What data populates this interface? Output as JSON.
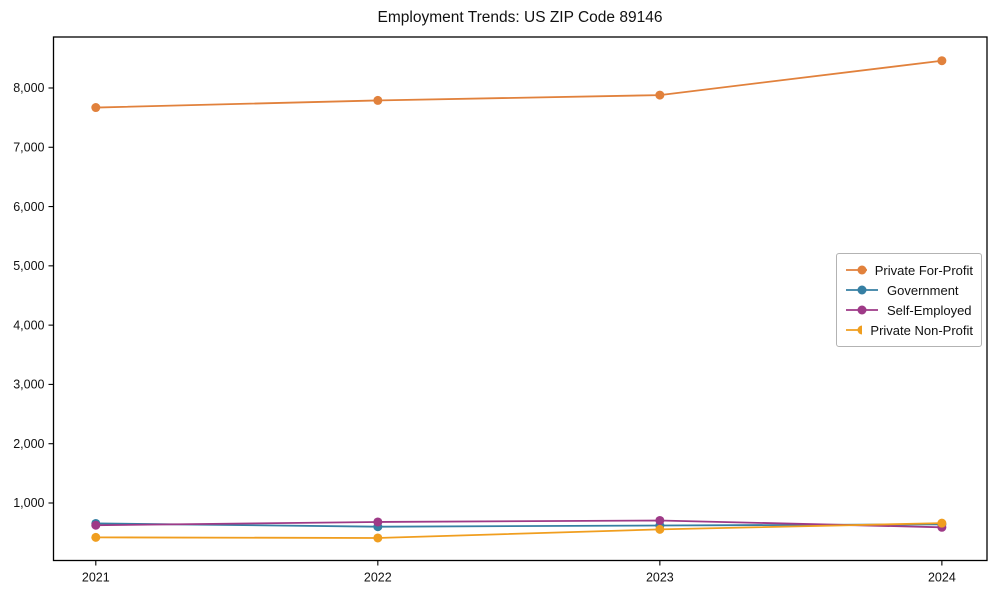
{
  "chart_data": {
    "type": "line",
    "title": "Employment Trends: US ZIP Code 89146",
    "x": [
      2021,
      2022,
      2023,
      2024
    ],
    "x_tick_labels": [
      "2021",
      "2022",
      "2023",
      "2024"
    ],
    "y_tick_values": [
      1000,
      2000,
      3000,
      4000,
      5000,
      6000,
      7000,
      8000
    ],
    "y_tick_labels": [
      "1,000",
      "2,000",
      "3,000",
      "4,000",
      "5,000",
      "6,000",
      "7,000",
      "8,000"
    ],
    "xlim": [
      2020.85,
      2024.16
    ],
    "ylim": [
      30,
      8860
    ],
    "grid": false,
    "legend_position": "center-right",
    "series": [
      {
        "name": "Private For-Profit",
        "color": "#e1813c",
        "values": [
          7670,
          7790,
          7880,
          8460
        ]
      },
      {
        "name": "Government",
        "color": "#367fa3",
        "values": [
          655,
          600,
          620,
          640
        ]
      },
      {
        "name": "Self-Employed",
        "color": "#9e3a87",
        "values": [
          625,
          680,
          705,
          590
        ]
      },
      {
        "name": "Private Non-Profit",
        "color": "#f09e1f",
        "values": [
          420,
          410,
          555,
          660
        ]
      }
    ],
    "line_width": 1.8,
    "marker": "circle",
    "marker_radius": 4.5,
    "frame_color": "#000000",
    "text_color": "#111111"
  }
}
